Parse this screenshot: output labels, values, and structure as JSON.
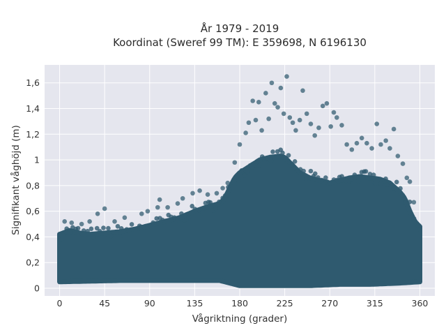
{
  "chart_data": {
    "type": "scatter",
    "title_line1": "År 1979 - 2019",
    "title_line2": "Koordinat (Sweref 99 TM): E 359698, N 6196130",
    "xlabel": "Vågriktning (grader)",
    "ylabel": "Signifikant våghöjd (m)",
    "xlim": [
      -15,
      375
    ],
    "ylim": [
      -0.06,
      1.74
    ],
    "xticks": [
      0,
      45,
      90,
      135,
      180,
      225,
      270,
      315,
      360
    ],
    "xtick_labels": [
      "0",
      "45",
      "90",
      "135",
      "180",
      "225",
      "270",
      "315",
      "360"
    ],
    "yticks": [
      0,
      0.2,
      0.4,
      0.6,
      0.8,
      1.0,
      1.2,
      1.4,
      1.6
    ],
    "ytick_labels": [
      "0",
      "0,2",
      "0,4",
      "0,6",
      "0,8",
      "1",
      "1,2",
      "1,4",
      "1,6"
    ],
    "grid": true,
    "colors": {
      "plot_background": "#e5e6ee",
      "grid": "#ffffff",
      "marker": "#2f5a6f"
    },
    "upper_envelope": {
      "x": [
        0,
        10,
        20,
        30,
        45,
        60,
        75,
        90,
        105,
        120,
        135,
        150,
        160,
        165,
        170,
        175,
        180,
        190,
        200,
        210,
        220,
        225,
        230,
        240,
        250,
        260,
        270,
        280,
        290,
        300,
        310,
        320,
        330,
        340,
        345,
        350,
        355,
        360
      ],
      "y": [
        0.42,
        0.45,
        0.43,
        0.42,
        0.43,
        0.44,
        0.46,
        0.49,
        0.52,
        0.55,
        0.6,
        0.64,
        0.66,
        0.7,
        0.78,
        0.86,
        0.9,
        0.95,
        1.0,
        1.02,
        1.03,
        1.02,
        0.98,
        0.9,
        0.86,
        0.84,
        0.82,
        0.84,
        0.86,
        0.87,
        0.86,
        0.85,
        0.82,
        0.75,
        0.7,
        0.6,
        0.52,
        0.48
      ]
    },
    "lower_envelope": {
      "x": [
        0,
        60,
        120,
        160,
        170,
        180,
        200,
        225,
        250,
        280,
        310,
        340,
        360
      ],
      "y": [
        0.05,
        0.06,
        0.06,
        0.06,
        0.04,
        0.02,
        0.02,
        0.02,
        0.02,
        0.03,
        0.03,
        0.04,
        0.05
      ]
    },
    "outliers": [
      {
        "x": 5,
        "y": 0.52
      },
      {
        "x": 12,
        "y": 0.51
      },
      {
        "x": 22,
        "y": 0.5
      },
      {
        "x": 30,
        "y": 0.52
      },
      {
        "x": 38,
        "y": 0.58
      },
      {
        "x": 45,
        "y": 0.62
      },
      {
        "x": 55,
        "y": 0.52
      },
      {
        "x": 65,
        "y": 0.55
      },
      {
        "x": 82,
        "y": 0.58
      },
      {
        "x": 88,
        "y": 0.6
      },
      {
        "x": 98,
        "y": 0.63
      },
      {
        "x": 100,
        "y": 0.69
      },
      {
        "x": 108,
        "y": 0.63
      },
      {
        "x": 118,
        "y": 0.66
      },
      {
        "x": 123,
        "y": 0.7
      },
      {
        "x": 133,
        "y": 0.74
      },
      {
        "x": 140,
        "y": 0.76
      },
      {
        "x": 148,
        "y": 0.73
      },
      {
        "x": 157,
        "y": 0.74
      },
      {
        "x": 163,
        "y": 0.78
      },
      {
        "x": 168,
        "y": 0.82
      },
      {
        "x": 175,
        "y": 0.98
      },
      {
        "x": 180,
        "y": 1.12
      },
      {
        "x": 186,
        "y": 1.21
      },
      {
        "x": 189,
        "y": 1.29
      },
      {
        "x": 193,
        "y": 1.46
      },
      {
        "x": 196,
        "y": 1.31
      },
      {
        "x": 199,
        "y": 1.45
      },
      {
        "x": 202,
        "y": 1.23
      },
      {
        "x": 206,
        "y": 1.52
      },
      {
        "x": 209,
        "y": 1.32
      },
      {
        "x": 212,
        "y": 1.6
      },
      {
        "x": 215,
        "y": 1.44
      },
      {
        "x": 218,
        "y": 1.41
      },
      {
        "x": 221,
        "y": 1.56
      },
      {
        "x": 224,
        "y": 1.36
      },
      {
        "x": 227,
        "y": 1.65
      },
      {
        "x": 230,
        "y": 1.33
      },
      {
        "x": 233,
        "y": 1.29
      },
      {
        "x": 236,
        "y": 1.23
      },
      {
        "x": 240,
        "y": 1.31
      },
      {
        "x": 243,
        "y": 1.54
      },
      {
        "x": 247,
        "y": 1.36
      },
      {
        "x": 251,
        "y": 1.28
      },
      {
        "x": 255,
        "y": 1.19
      },
      {
        "x": 259,
        "y": 1.25
      },
      {
        "x": 263,
        "y": 1.42
      },
      {
        "x": 267,
        "y": 1.44
      },
      {
        "x": 271,
        "y": 1.26
      },
      {
        "x": 274,
        "y": 1.37
      },
      {
        "x": 277,
        "y": 1.33
      },
      {
        "x": 282,
        "y": 1.27
      },
      {
        "x": 287,
        "y": 1.12
      },
      {
        "x": 292,
        "y": 1.08
      },
      {
        "x": 297,
        "y": 1.13
      },
      {
        "x": 302,
        "y": 1.17
      },
      {
        "x": 307,
        "y": 1.13
      },
      {
        "x": 312,
        "y": 1.09
      },
      {
        "x": 317,
        "y": 1.28
      },
      {
        "x": 321,
        "y": 1.12
      },
      {
        "x": 326,
        "y": 1.15
      },
      {
        "x": 330,
        "y": 1.09
      },
      {
        "x": 334,
        "y": 1.24
      },
      {
        "x": 338,
        "y": 1.03
      },
      {
        "x": 343,
        "y": 0.97
      },
      {
        "x": 347,
        "y": 0.86
      },
      {
        "x": 350,
        "y": 0.83
      },
      {
        "x": 354,
        "y": 0.67
      }
    ]
  }
}
